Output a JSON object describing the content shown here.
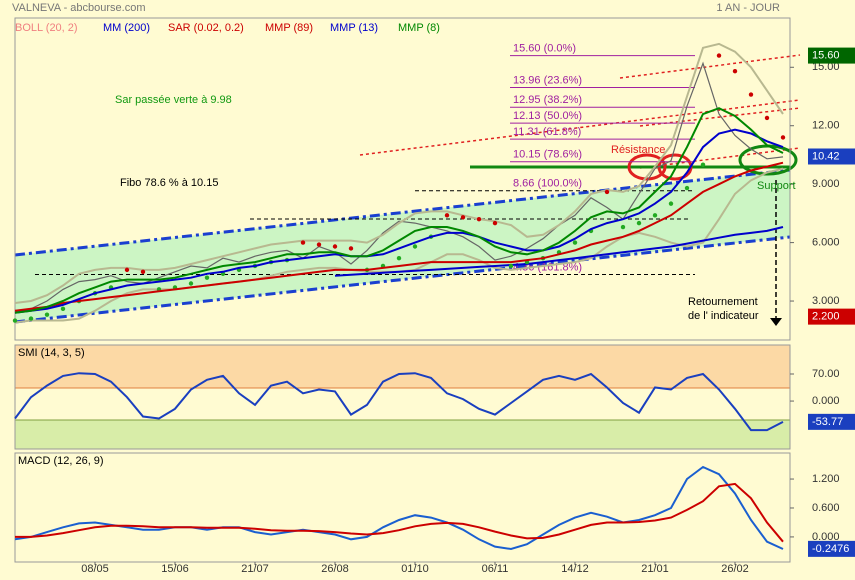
{
  "header": {
    "title": "VALNEVA - abcbourse.com",
    "period": "1 AN - JOUR"
  },
  "chart_data": [
    {
      "type": "line",
      "ylim": [
        1,
        16.4
      ],
      "yticks": [
        {
          "value": 3,
          "label": "3.000"
        },
        {
          "value": 6,
          "label": "6.000"
        },
        {
          "value": 9,
          "label": "9.000"
        },
        {
          "value": 12,
          "label": "12.00"
        },
        {
          "value": 15,
          "label": "15.00"
        }
      ],
      "price_markers": [
        {
          "value": 15.6,
          "label": "15.60",
          "color": "#006600"
        },
        {
          "value": 10.42,
          "label": "10.42",
          "color": "#1a3fbf"
        },
        {
          "value": 2.2,
          "label": "2.200",
          "color": "#cc0000"
        }
      ],
      "fibo_levels": [
        {
          "value": 15.6,
          "label": "15.60 (0.0%)"
        },
        {
          "value": 13.96,
          "label": "13.96 (23.6%)"
        },
        {
          "value": 12.95,
          "label": "12.95 (38.2%)"
        },
        {
          "value": 12.13,
          "label": "12.13 (50.0%)"
        },
        {
          "value": 11.31,
          "label": "11.31 (61.8%)"
        },
        {
          "value": 10.15,
          "label": "10.15 (78.6%)"
        },
        {
          "value": 8.66,
          "label": "8.66 (100.0%)"
        },
        {
          "value": 4.36,
          "label": "4.36 (161.8%)"
        }
      ],
      "annotations": [
        "Sar passée verte à 9.98",
        "Fibo 78.6 % à 10.15",
        "Résistance",
        "Support",
        "Retournement",
        "de l' indicateur"
      ],
      "series": [
        {
          "color": "#666666",
          "values": [
            2.4,
            2.6,
            3.0,
            3.6,
            4.0,
            4.1,
            4.3,
            4.0,
            3.9,
            4.2,
            4.5,
            4.8,
            4.7,
            5.2,
            5.0,
            5.3,
            5.5,
            5.6,
            5.2,
            5.8,
            5.5,
            4.9,
            5.6,
            6.5,
            7.1,
            7.0,
            6.8,
            6.6,
            6.3,
            5.8,
            5.1,
            5.3,
            5.7,
            6.2,
            6.9,
            7.4,
            8.3,
            7.8,
            7.2,
            8.5,
            9.8,
            10.2,
            13.0,
            15.2,
            12.6,
            11.5,
            10.8,
            10.3,
            10.4
          ]
        },
        {
          "name": "BOLL (20, 2)",
          "color": "#f08080",
          "values": [
            2.9,
            3.0,
            3.3,
            3.8,
            4.4,
            4.6,
            4.7,
            4.7,
            4.6,
            4.6,
            4.7,
            4.9,
            5.1,
            5.3,
            5.5,
            5.7,
            5.9,
            6.0,
            6.1,
            6.1,
            6.1,
            6.1,
            6.0,
            6.4,
            7.0,
            7.5,
            7.6,
            7.6,
            7.4,
            7.2,
            7.1,
            6.9,
            6.3,
            6.4,
            6.9,
            7.6,
            8.5,
            8.7,
            8.6,
            8.9,
            9.9,
            11.0,
            13.5,
            16.0,
            16.2,
            15.8,
            15.0,
            13.8,
            12.6
          ],
          "values_lower": [
            1.9,
            2.0,
            2.0,
            2.0,
            2.1,
            2.5,
            3.0,
            3.4,
            3.6,
            3.6,
            3.6,
            3.7,
            3.8,
            3.9,
            4.0,
            4.1,
            4.3,
            4.5,
            4.6,
            4.7,
            4.7,
            4.6,
            4.5,
            4.5,
            4.5,
            4.6,
            5.0,
            5.4,
            5.4,
            5.1,
            4.7,
            4.6,
            4.7,
            4.8,
            4.9,
            5.0,
            5.2,
            5.8,
            6.3,
            6.5,
            6.3,
            6.0,
            5.8,
            6.0,
            7.2,
            8.5,
            9.2,
            9.6,
            9.8
          ]
        },
        {
          "name": "MM (200)",
          "color": "#0000cc",
          "values": [
            null,
            null,
            null,
            null,
            null,
            null,
            null,
            null,
            null,
            null,
            null,
            null,
            null,
            null,
            null,
            null,
            null,
            null,
            null,
            null,
            4.3,
            4.35,
            4.4,
            4.45,
            4.5,
            4.55,
            4.6,
            4.65,
            4.7,
            4.75,
            4.8,
            4.85,
            4.9,
            5.0,
            5.1,
            5.2,
            5.3,
            5.4,
            5.5,
            5.6,
            5.7,
            5.8,
            5.95,
            6.1,
            6.25,
            6.4,
            6.5,
            6.6,
            6.8
          ]
        },
        {
          "name": "SAR (0.02, 0.2)",
          "color": "#cc0000",
          "style": "dots",
          "values": [
            2.0,
            2.1,
            2.3,
            2.6,
            3.0,
            3.4,
            3.7,
            4.6,
            4.5,
            3.6,
            3.7,
            3.9,
            4.2,
            4.4,
            4.6,
            4.8,
            5.0,
            5.1,
            6.0,
            5.9,
            5.8,
            5.7,
            4.6,
            4.8,
            5.2,
            5.8,
            6.3,
            7.4,
            7.3,
            7.2,
            7.0,
            4.8,
            5.0,
            5.2,
            5.5,
            6.0,
            6.6,
            8.6,
            6.8,
            7.0,
            7.4,
            8.0,
            8.8,
            10.0,
            15.6,
            14.8,
            13.6,
            12.4,
            11.4
          ]
        },
        {
          "name": "MMP (89)",
          "color": "#cc0000",
          "values": [
            2.5,
            2.6,
            2.7,
            2.9,
            3.0,
            3.1,
            3.2,
            3.3,
            3.4,
            3.5,
            3.6,
            3.7,
            3.8,
            3.9,
            4.0,
            4.1,
            4.2,
            4.3,
            4.4,
            4.5,
            4.6,
            4.6,
            4.6,
            4.7,
            4.8,
            4.9,
            5.0,
            5.0,
            5.0,
            5.0,
            5.0,
            5.0,
            5.1,
            5.2,
            5.4,
            5.6,
            5.9,
            6.1,
            6.3,
            6.6,
            7.0,
            7.4,
            8.0,
            8.6,
            9.0,
            9.4,
            9.7,
            9.9,
            10.1
          ]
        },
        {
          "name": "MMP (13)",
          "color": "#0000cc",
          "values": [
            2.4,
            2.5,
            2.6,
            2.8,
            3.1,
            3.4,
            3.6,
            3.8,
            3.9,
            4.0,
            4.1,
            4.2,
            4.4,
            4.5,
            4.7,
            4.8,
            5.0,
            5.1,
            5.2,
            5.3,
            5.4,
            5.3,
            5.3,
            5.4,
            5.7,
            6.0,
            6.3,
            6.5,
            6.5,
            6.3,
            6.0,
            5.8,
            5.6,
            5.6,
            5.8,
            6.2,
            6.7,
            7.0,
            7.2,
            7.5,
            8.0,
            8.6,
            9.6,
            10.9,
            11.6,
            11.8,
            11.6,
            11.2,
            10.9
          ]
        },
        {
          "name": "MMP (8)",
          "color": "#008800",
          "values": [
            2.4,
            2.5,
            2.7,
            3.0,
            3.4,
            3.7,
            4.0,
            4.1,
            4.1,
            4.1,
            4.2,
            4.4,
            4.6,
            4.8,
            4.9,
            5.0,
            5.2,
            5.4,
            5.4,
            5.5,
            5.5,
            5.3,
            5.3,
            5.6,
            6.1,
            6.6,
            6.8,
            6.8,
            6.6,
            6.3,
            5.8,
            5.5,
            5.4,
            5.6,
            6.0,
            6.6,
            7.3,
            7.6,
            7.5,
            7.8,
            8.6,
            9.4,
            10.9,
            12.6,
            12.9,
            12.5,
            11.8,
            11.0,
            10.6
          ]
        }
      ]
    },
    {
      "type": "line",
      "title": "SMI (14, 3, 5)",
      "ylim": [
        -124,
        145
      ],
      "yticks": [
        {
          "value": 70,
          "label": "70.00"
        },
        {
          "value": 0,
          "label": "0.000"
        }
      ],
      "price_markers": [
        {
          "value": -53.77,
          "label": "-53.77",
          "color": "#1a3fbf"
        }
      ],
      "series": [
        {
          "color": "#1a3fbf",
          "values": [
            -45,
            10,
            40,
            65,
            72,
            70,
            50,
            10,
            -40,
            -45,
            -20,
            30,
            55,
            65,
            20,
            -10,
            40,
            50,
            20,
            30,
            25,
            -35,
            -10,
            50,
            70,
            72,
            60,
            20,
            5,
            -20,
            -35,
            -5,
            25,
            55,
            65,
            55,
            70,
            35,
            -5,
            -30,
            35,
            30,
            60,
            70,
            30,
            -20,
            -75,
            -75,
            -54
          ]
        }
      ]
    },
    {
      "type": "line",
      "title": "MACD (12, 26, 9)",
      "ylim": [
        -0.52,
        1.74
      ],
      "yticks": [
        {
          "value": 1.2,
          "label": "1.200"
        },
        {
          "value": 0.6,
          "label": "0.600"
        },
        {
          "value": 0,
          "label": "0.000"
        }
      ],
      "price_markers": [
        {
          "value": -0.2476,
          "label": "-0.2476",
          "color": "#1a3fbf"
        }
      ],
      "categories": [
        null,
        null,
        null,
        null,
        null,
        "08/05",
        null,
        null,
        null,
        null,
        "15/06",
        null,
        null,
        null,
        null,
        "21/07",
        null,
        null,
        null,
        null,
        "26/08",
        null,
        null,
        null,
        null,
        "01/10",
        null,
        null,
        null,
        null,
        "06/11",
        null,
        null,
        null,
        null,
        "14/12",
        null,
        null,
        null,
        null,
        "21/01",
        null,
        null,
        null,
        null,
        "26/02",
        null,
        null,
        null
      ],
      "series": [
        {
          "color": "#1a5fd0",
          "values": [
            -0.05,
            0.0,
            0.1,
            0.2,
            0.28,
            0.3,
            0.25,
            0.2,
            0.15,
            0.15,
            0.2,
            0.2,
            0.15,
            0.2,
            0.2,
            0.1,
            0.05,
            0.1,
            0.15,
            0.1,
            0.05,
            -0.05,
            0.0,
            0.2,
            0.35,
            0.45,
            0.4,
            0.3,
            0.15,
            -0.05,
            -0.2,
            -0.25,
            -0.15,
            0.05,
            0.25,
            0.4,
            0.5,
            0.42,
            0.3,
            0.35,
            0.45,
            0.6,
            1.2,
            1.45,
            1.3,
            0.9,
            0.35,
            -0.1,
            -0.25
          ]
        },
        {
          "color": "#cc0000",
          "values": [
            0.0,
            0.0,
            0.03,
            0.08,
            0.14,
            0.2,
            0.23,
            0.23,
            0.22,
            0.2,
            0.2,
            0.2,
            0.19,
            0.19,
            0.19,
            0.17,
            0.14,
            0.13,
            0.13,
            0.12,
            0.1,
            0.07,
            0.05,
            0.08,
            0.14,
            0.22,
            0.27,
            0.29,
            0.27,
            0.2,
            0.11,
            0.03,
            -0.03,
            -0.02,
            0.05,
            0.15,
            0.25,
            0.3,
            0.3,
            0.31,
            0.34,
            0.4,
            0.56,
            0.74,
            1.05,
            1.1,
            0.8,
            0.3,
            -0.1
          ]
        }
      ]
    }
  ]
}
